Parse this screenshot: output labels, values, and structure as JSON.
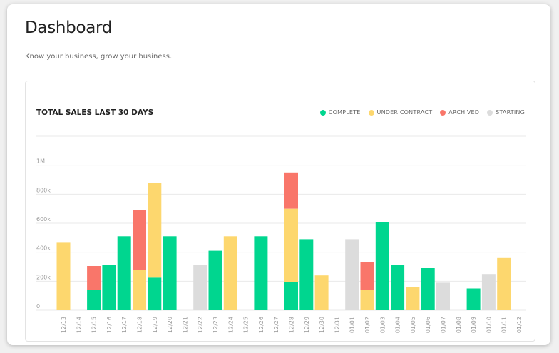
{
  "header": {
    "title": "Dashboard",
    "subtitle": "Know your business, grow your business."
  },
  "colors": {
    "complete": "#00d68f",
    "under_contract": "#fdd76e",
    "archived": "#f9766a",
    "starting": "#dcdcdc",
    "grid": "#e9e9e9"
  },
  "chart_data": {
    "type": "bar",
    "stacked": true,
    "title": "TOTAL SALES LAST 30 DAYS",
    "xlabel": "",
    "ylabel": "",
    "ylim": [
      0,
      1200000
    ],
    "yticks": [
      0,
      200000,
      400000,
      600000,
      800000,
      1000000
    ],
    "ytick_labels": [
      "0",
      "200k",
      "400k",
      "600k",
      "800k",
      "1M"
    ],
    "grid": true,
    "legend_position": "top-right",
    "categories": [
      "12/13",
      "12/14",
      "12/15",
      "12/16",
      "12/17",
      "12/18",
      "12/19",
      "12/20",
      "12/21",
      "12/22",
      "12/23",
      "12/24",
      "12/25",
      "12/26",
      "12/27",
      "12/28",
      "12/29",
      "12/30",
      "12/31",
      "01/01",
      "01/02",
      "01/03",
      "01/04",
      "01/05",
      "01/06",
      "01/07",
      "01/08",
      "01/09",
      "01/10",
      "01/11",
      "01/12"
    ],
    "series": [
      {
        "name": "COMPLETE",
        "color_key": "complete",
        "values": [
          0,
          0,
          140000,
          310000,
          510000,
          0,
          225000,
          510000,
          0,
          0,
          410000,
          0,
          0,
          510000,
          0,
          195000,
          490000,
          0,
          0,
          0,
          0,
          610000,
          310000,
          0,
          290000,
          0,
          0,
          150000,
          0,
          0,
          0
        ]
      },
      {
        "name": "UNDER CONTRACT",
        "color_key": "under_contract",
        "values": [
          465000,
          0,
          0,
          0,
          0,
          280000,
          655000,
          0,
          0,
          0,
          0,
          510000,
          0,
          0,
          0,
          505000,
          0,
          240000,
          0,
          0,
          140000,
          0,
          0,
          160000,
          0,
          0,
          0,
          0,
          0,
          360000,
          0
        ]
      },
      {
        "name": "ARCHIVED",
        "color_key": "archived",
        "values": [
          0,
          0,
          165000,
          0,
          0,
          410000,
          0,
          0,
          0,
          0,
          0,
          0,
          0,
          0,
          0,
          250000,
          0,
          0,
          0,
          0,
          190000,
          0,
          0,
          0,
          0,
          0,
          0,
          0,
          0,
          0,
          0
        ]
      },
      {
        "name": "STARTING",
        "color_key": "starting",
        "values": [
          0,
          0,
          0,
          0,
          0,
          0,
          0,
          0,
          0,
          310000,
          0,
          0,
          0,
          0,
          0,
          0,
          0,
          0,
          0,
          490000,
          0,
          0,
          0,
          0,
          0,
          190000,
          0,
          0,
          250000,
          0,
          0
        ]
      }
    ]
  }
}
